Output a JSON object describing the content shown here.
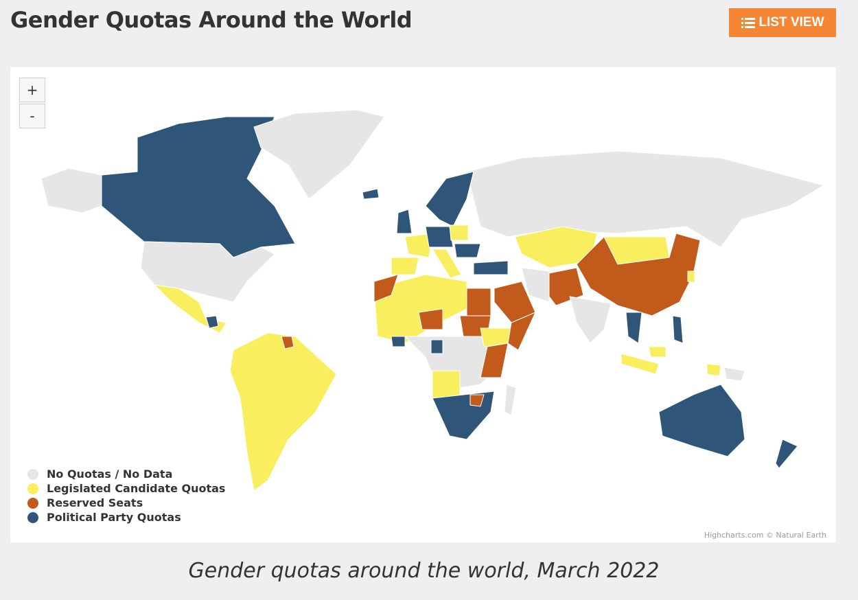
{
  "header": {
    "title": "Gender Quotas Around the World",
    "button": "LIST VIEW"
  },
  "map": {
    "zoom_in": "+",
    "zoom_out": "-",
    "legend": [
      {
        "name": "No Quotas / No Data",
        "color": "#e6e6e6"
      },
      {
        "name": "Legislated Candidate Quotas",
        "color": "#f9ef5e"
      },
      {
        "name": "Reserved Seats",
        "color": "#c25a1c"
      },
      {
        "name": "Political Party Quotas",
        "color": "#2f5679"
      }
    ],
    "credit": "Highcharts.com © Natural Earth"
  },
  "caption": "Gender quotas around the world, March 2022"
}
